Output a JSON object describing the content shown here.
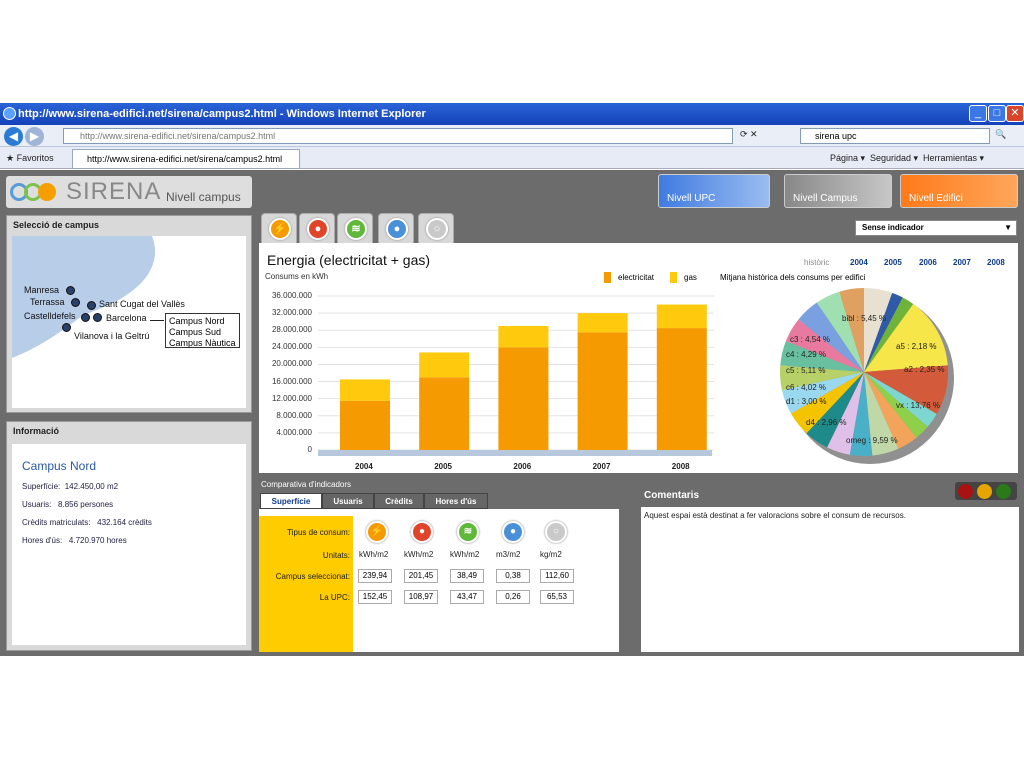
{
  "browser": {
    "title": "http://www.sirena-edifici.net/sirena/campus2.html - Windows Internet Explorer",
    "address": "http://www.sirena-edifici.net/sirena/campus2.html",
    "search": "sirena upc",
    "favorites": "Favoritos",
    "tab": "http://www.sirena-edifici.net/sirena/campus2.html",
    "toolbar": {
      "page": "Página",
      "security": "Seguridad",
      "tools": "Herramientas"
    }
  },
  "app": {
    "logo": "SIRENA",
    "level_label": "Nivell campus",
    "nav": [
      "Nivell UPC",
      "Nivell Campus",
      "Nivell Edifici"
    ],
    "indicator_select": "Sense indicador"
  },
  "campus_panel": {
    "title": "Selecció de campus",
    "cities": [
      "Manresa",
      "Terrassa",
      "Sant Cugat del Vallès",
      "Castelldefels",
      "Barcelona",
      "Vilanova i la Geltrú"
    ],
    "popup": [
      "Campus Nord",
      "Campus Sud",
      "Campus Nàutica"
    ]
  },
  "info_panel": {
    "title": "Informació",
    "campus": "Campus Nord",
    "rows": [
      {
        "label": "Superfície:",
        "value": "142.450,00 m2"
      },
      {
        "label": "Usuaris:",
        "value": "8.856 persones"
      },
      {
        "label": "Crèdits matriculats:",
        "value": "432.164 crèdits"
      },
      {
        "label": "Hores d'ús:",
        "value": "4.720.970 hores"
      }
    ]
  },
  "chart_panel": {
    "title": "Energia (electricitat + gas)",
    "years_links": [
      "històric",
      "2004",
      "2005",
      "2006",
      "2007",
      "2008"
    ],
    "pie_caption": "Mitjana històrica dels consums per edifici"
  },
  "chart_data": [
    {
      "type": "bar",
      "ylabel": "Consums en kWh",
      "categories": [
        "2004",
        "2005",
        "2006",
        "2007",
        "2008"
      ],
      "series": [
        {
          "name": "electricitat",
          "values": [
            11500000,
            17000000,
            24000000,
            27500000,
            28500000
          ]
        },
        {
          "name": "gas",
          "values": [
            5000000,
            5800000,
            5000000,
            4500000,
            5500000
          ]
        }
      ],
      "yticks": [
        "0",
        "4.000.000",
        "8.000.000",
        "12.000.000",
        "16.000.000",
        "20.000.000",
        "24.000.000",
        "28.000.000",
        "32.000.000",
        "36.000.000"
      ],
      "ylim": [
        0,
        36000000
      ],
      "stacked": true,
      "colors": {
        "electricitat": "#f59a00",
        "gas": "#ffc90e"
      }
    },
    {
      "type": "pie",
      "labels": [
        "bibl : 5,45 %",
        "a5 : 2,18 %",
        "a2 : 2,35 %",
        "vx : 13,76 %",
        "omeg : 9,59 %",
        "d4 : 2,96 %",
        "d1 : 3,00 %",
        "c6 : 4,02 %",
        "c5 : 5,11 %",
        "c4 : 4,29 %",
        "c3 : 4,54 %"
      ]
    }
  ],
  "indicators": {
    "title": "Comparativa d'indicadors",
    "tabs": [
      "Superfície",
      "Usuaris",
      "Crèdits",
      "Hores d'ús"
    ],
    "row_labels": [
      "Tipus de consum:",
      "Unitats:",
      "Campus seleccionat:",
      "La UPC:"
    ],
    "units": [
      "kWh/m2",
      "kWh/m2",
      "kWh/m2",
      "m3/m2",
      "kg/m2"
    ],
    "campus": [
      "239,94",
      "201,45",
      "38,49",
      "0,38",
      "112,60"
    ],
    "upc": [
      "152,45",
      "108,97",
      "43,47",
      "0,26",
      "65,53"
    ]
  },
  "comments": {
    "title": "Comentaris",
    "text": "Aquest espai està  destinat a fer valoracions sobre el consum de recursos."
  }
}
